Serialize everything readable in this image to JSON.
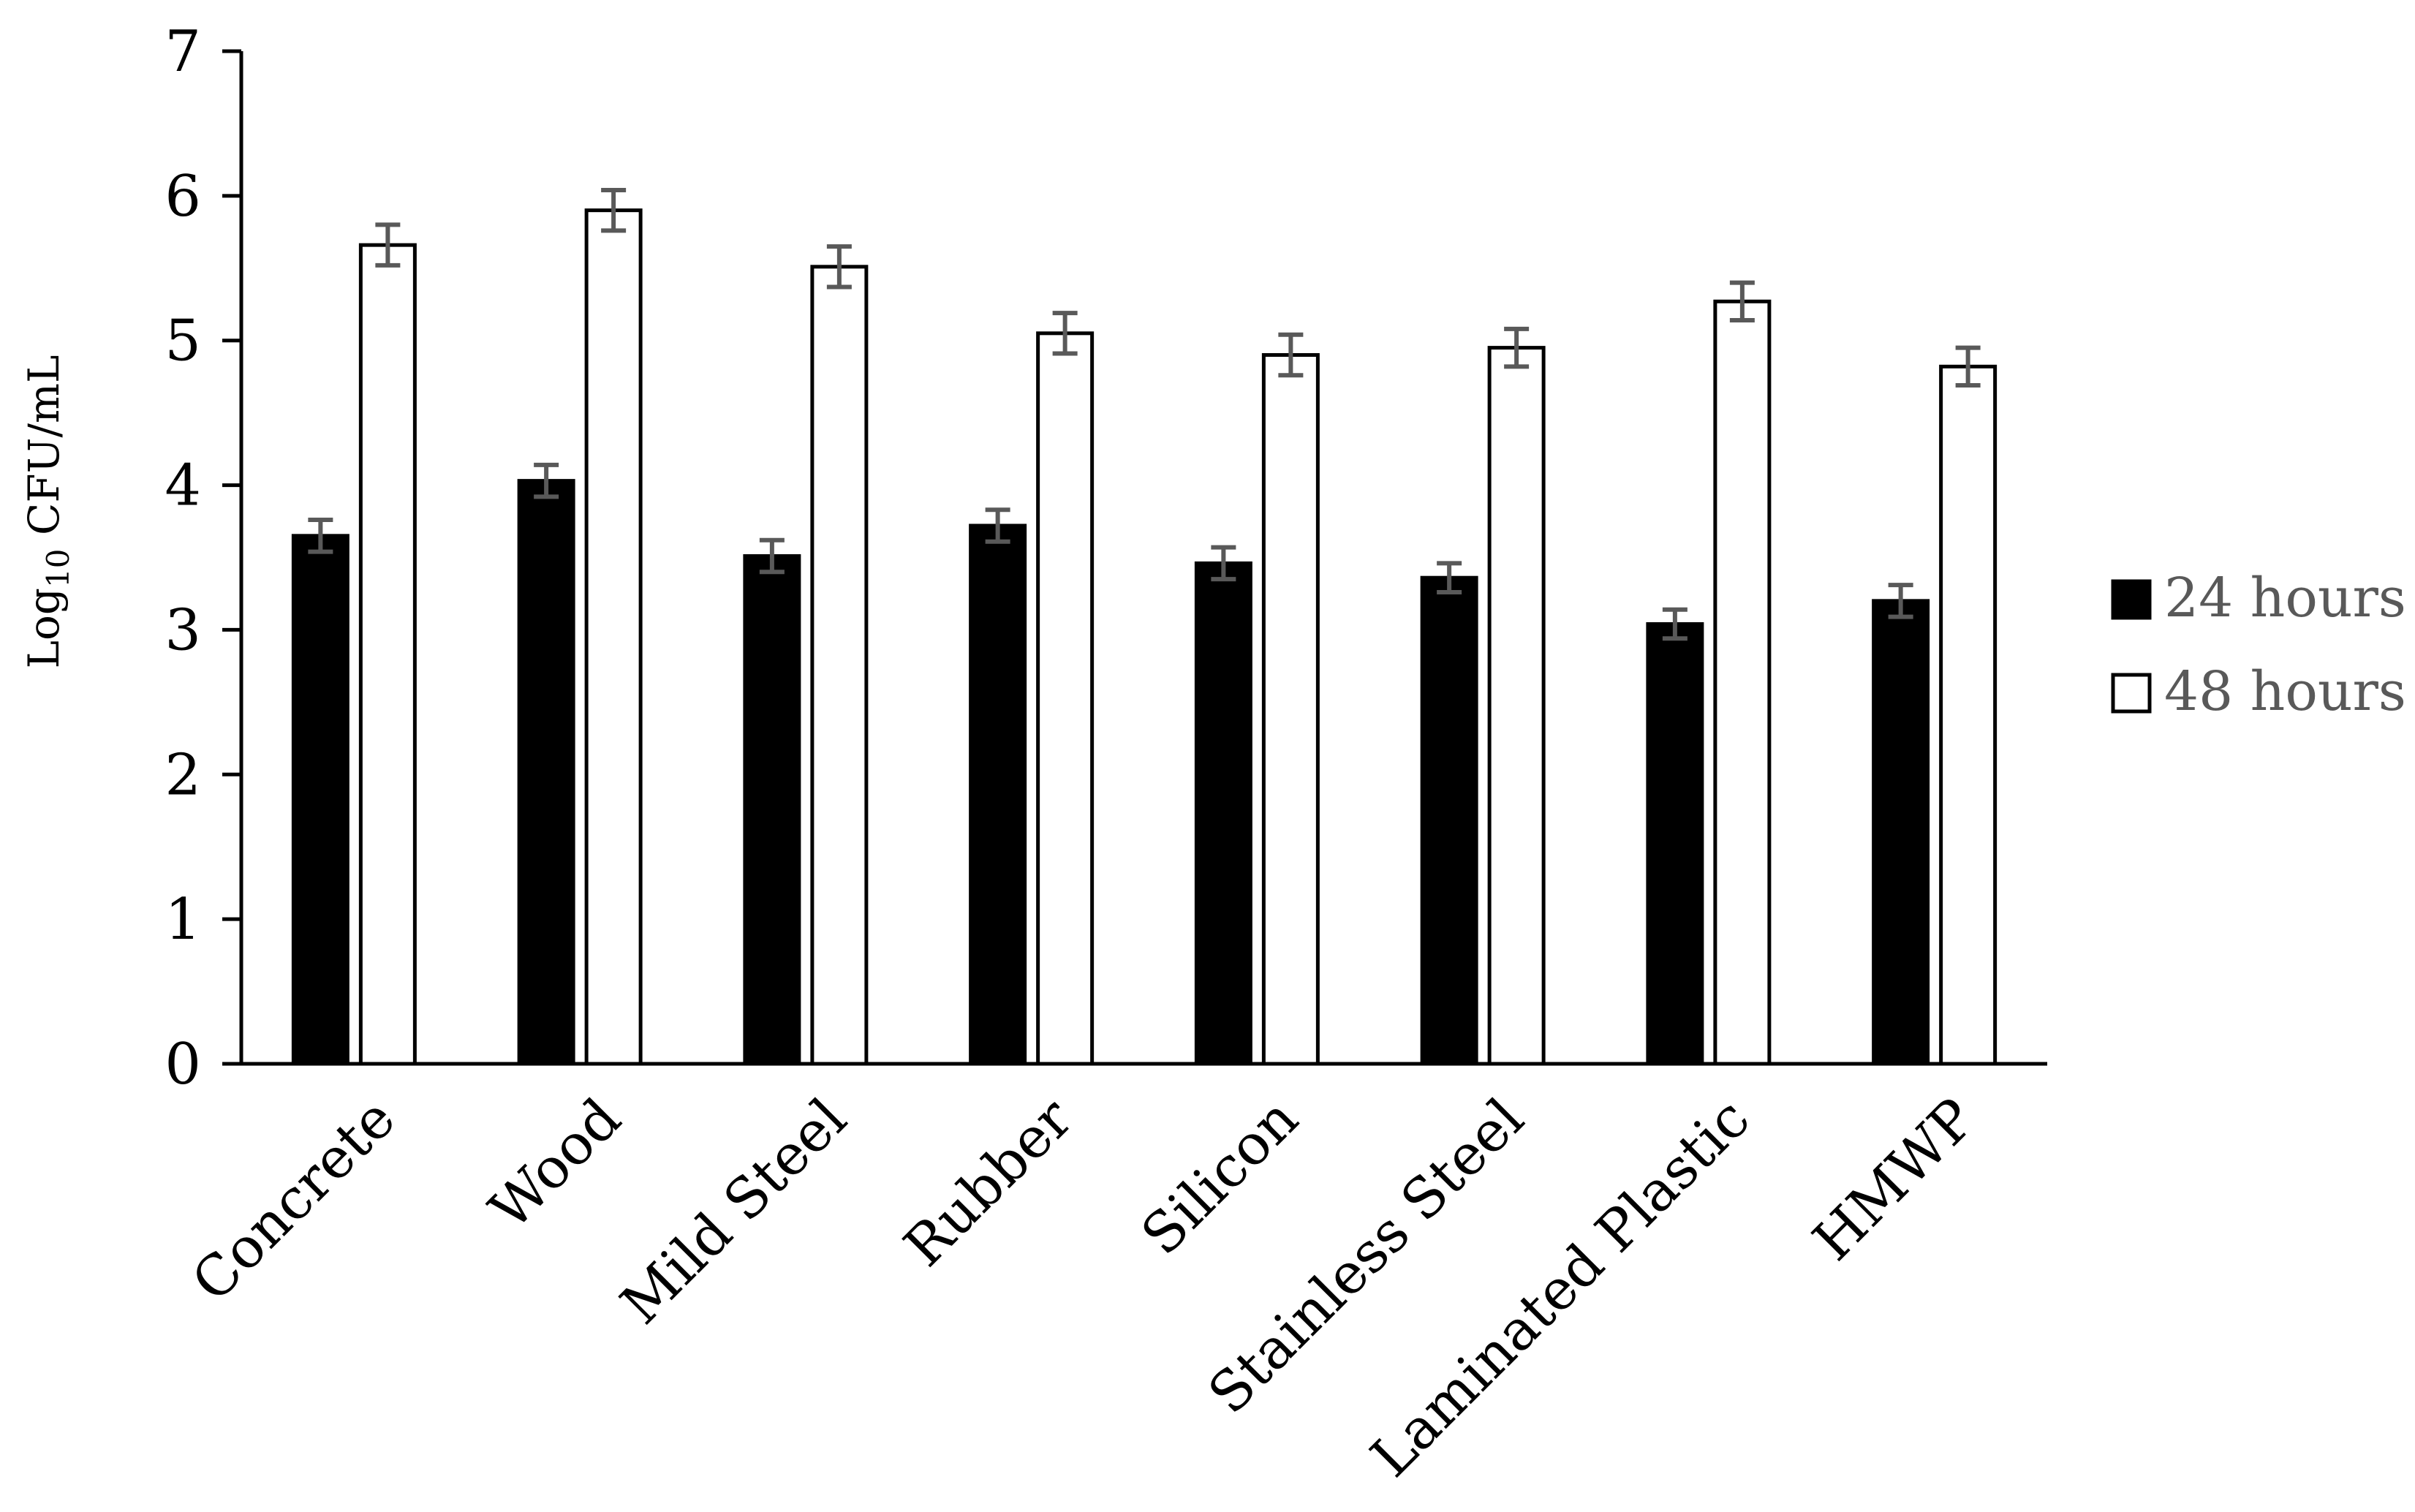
{
  "chart_data": {
    "type": "bar",
    "title": "",
    "xlabel": "",
    "ylabel": {
      "base": "Log",
      "sub": "10",
      "rest": " CFU/mL"
    },
    "ylim": [
      0,
      7
    ],
    "yticks": [
      "0",
      "1",
      "2",
      "3",
      "4",
      "5",
      "6",
      "7"
    ],
    "categories": [
      "Concrete",
      "Wood",
      "Mild Steel",
      "Rubber",
      "Silicon",
      "Stainless Steel",
      "Laminated Plastic",
      "HMWP"
    ],
    "series": [
      {
        "name": "24 hours",
        "color": "#000000",
        "values": [
          3.65,
          4.03,
          3.51,
          3.72,
          3.46,
          3.36,
          3.04,
          3.2
        ],
        "errors": [
          0.11,
          0.11,
          0.11,
          0.11,
          0.11,
          0.1,
          0.1,
          0.11
        ]
      },
      {
        "name": "48 hours",
        "color": "#ffffff",
        "values": [
          5.66,
          5.9,
          5.51,
          5.05,
          4.9,
          4.95,
          5.27,
          4.82
        ],
        "errors": [
          0.14,
          0.14,
          0.14,
          0.14,
          0.14,
          0.13,
          0.13,
          0.13
        ]
      }
    ],
    "grid": false,
    "legend_position": "right"
  }
}
